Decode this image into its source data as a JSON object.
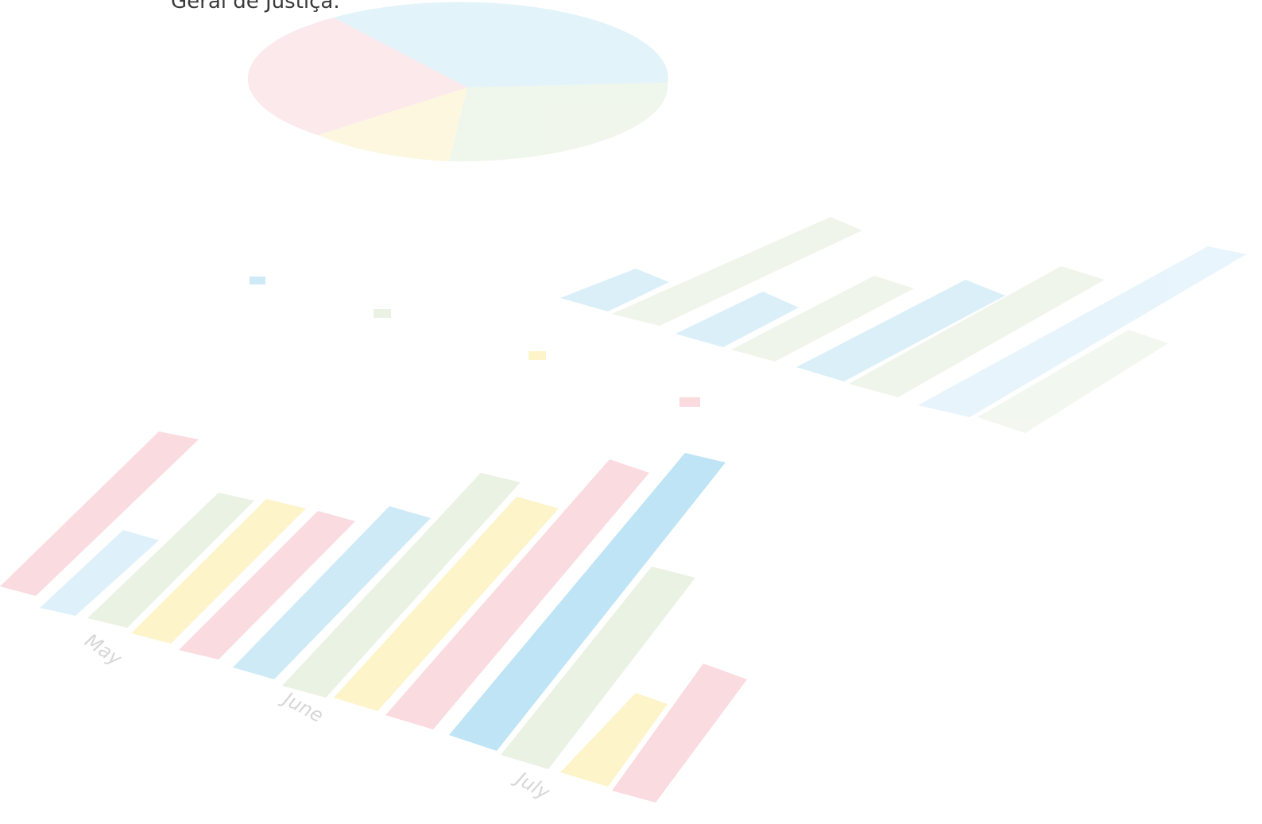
{
  "heading": {
    "text": "Geral de Justiça."
  },
  "background": {
    "labels": [
      "May",
      "June",
      "July"
    ]
  }
}
